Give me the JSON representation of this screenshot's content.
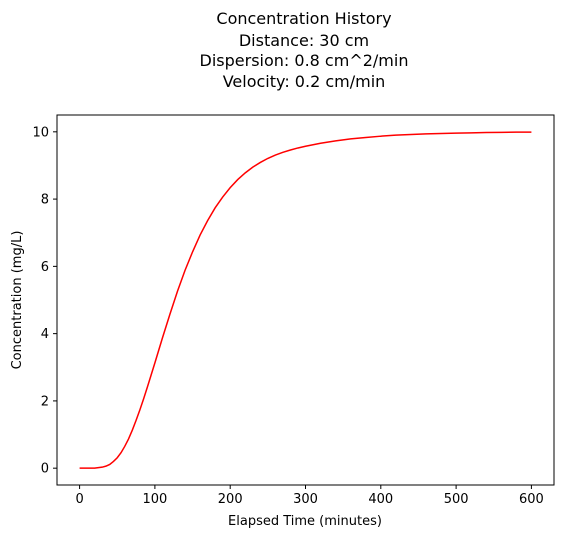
{
  "chart_data": {
    "type": "line",
    "title": [
      "Concentration History",
      "Distance: 30 cm",
      "Dispersion: 0.8 cm^2/min",
      "Velocity: 0.2 cm/min"
    ],
    "xlabel": "Elapsed Time (minutes)",
    "ylabel": "Concentration  (mg/L)",
    "xlim": [
      -30,
      630
    ],
    "ylim": [
      -0.5,
      10.5
    ],
    "xticks": [
      0,
      100,
      200,
      300,
      400,
      500,
      600
    ],
    "yticks": [
      0,
      2,
      4,
      6,
      8,
      10
    ],
    "grid": false,
    "series": [
      {
        "color": "#ff0000",
        "x": [
          0,
          10,
          20,
          30,
          35,
          40,
          45,
          50,
          55,
          60,
          65,
          70,
          75,
          80,
          85,
          90,
          95,
          100,
          110,
          120,
          130,
          140,
          150,
          160,
          170,
          180,
          190,
          200,
          210,
          220,
          230,
          240,
          250,
          260,
          270,
          280,
          290,
          300,
          320,
          340,
          360,
          380,
          400,
          420,
          440,
          460,
          480,
          500,
          520,
          540,
          560,
          580,
          600
        ],
        "y": [
          0,
          0,
          0,
          0.03,
          0.06,
          0.11,
          0.2,
          0.31,
          0.46,
          0.65,
          0.87,
          1.13,
          1.42,
          1.73,
          2.06,
          2.41,
          2.77,
          3.13,
          3.87,
          4.58,
          5.26,
          5.88,
          6.43,
          6.93,
          7.36,
          7.74,
          8.06,
          8.34,
          8.58,
          8.78,
          8.95,
          9.09,
          9.21,
          9.31,
          9.39,
          9.46,
          9.52,
          9.57,
          9.66,
          9.73,
          9.79,
          9.83,
          9.87,
          9.9,
          9.92,
          9.94,
          9.95,
          9.96,
          9.97,
          9.98,
          9.985,
          9.99,
          9.99
        ]
      }
    ]
  }
}
